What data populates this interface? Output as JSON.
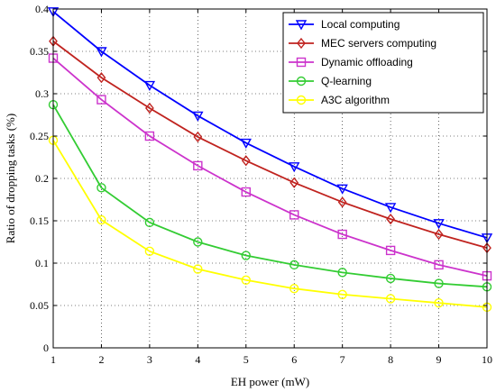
{
  "chart_data": {
    "type": "line",
    "title": "",
    "xlabel": "EH power (mW)",
    "ylabel": "Ratio of  dropping tasks (%)",
    "x": [
      1,
      2,
      3,
      4,
      5,
      6,
      7,
      8,
      9,
      10
    ],
    "xlim": [
      1,
      10
    ],
    "ylim": [
      0,
      0.4
    ],
    "xticks": [
      "1",
      "2",
      "3",
      "4",
      "5",
      "6",
      "7",
      "8",
      "9",
      "10"
    ],
    "yticks": [
      "0",
      "0.05",
      "0.1",
      "0.15",
      "0.2",
      "0.25",
      "0.3",
      "0.35",
      "0.4"
    ],
    "grid": true,
    "legend_position": "top-right",
    "series": [
      {
        "name": "Local computing",
        "color": "#0000ff",
        "marker": "triangle-down",
        "values": [
          0.397,
          0.35,
          0.31,
          0.274,
          0.242,
          0.214,
          0.188,
          0.166,
          0.147,
          0.13
        ]
      },
      {
        "name": "MEC servers computing",
        "color": "#c0231f",
        "marker": "diamond",
        "values": [
          0.362,
          0.319,
          0.283,
          0.249,
          0.221,
          0.195,
          0.172,
          0.152,
          0.134,
          0.118
        ]
      },
      {
        "name": "Dynamic offloading",
        "color": "#cc33cc",
        "marker": "square",
        "values": [
          0.342,
          0.293,
          0.25,
          0.215,
          0.184,
          0.157,
          0.134,
          0.115,
          0.098,
          0.085
        ]
      },
      {
        "name": "Q-learning",
        "color": "#33cc33",
        "marker": "circle",
        "values": [
          0.287,
          0.189,
          0.148,
          0.125,
          0.109,
          0.098,
          0.089,
          0.082,
          0.076,
          0.072
        ]
      },
      {
        "name": "A3C algorithm",
        "color": "#ffff00",
        "marker": "circle",
        "values": [
          0.245,
          0.151,
          0.114,
          0.093,
          0.08,
          0.07,
          0.063,
          0.058,
          0.053,
          0.048
        ]
      }
    ]
  }
}
